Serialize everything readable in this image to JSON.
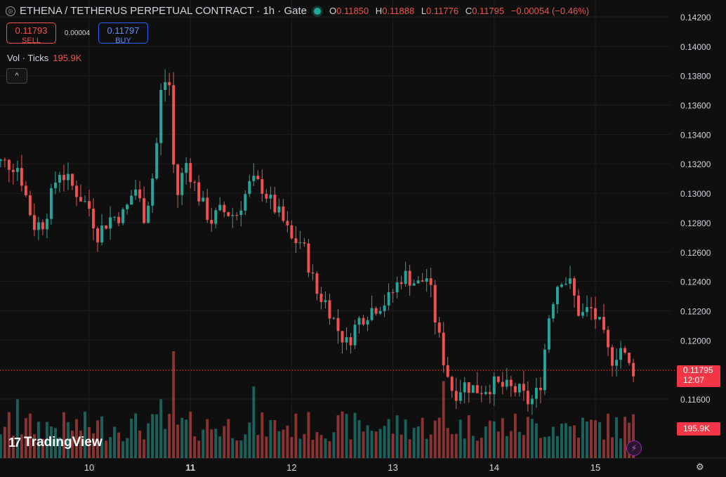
{
  "header": {
    "symbol_icon": "currency-icon",
    "title": "ETHENA / TETHERUS PERPETUAL CONTRACT · 1h · Gate",
    "status_color": "#26a69a",
    "ohlc": [
      {
        "label": "O",
        "value": "0.11850"
      },
      {
        "label": "H",
        "value": "0.11888"
      },
      {
        "label": "L",
        "value": "0.11776"
      },
      {
        "label": "C",
        "value": "0.11795"
      }
    ],
    "change": "−0.00054 (−0.46%)"
  },
  "trade": {
    "sell_price": "0.11793",
    "sell_label": "SELL",
    "spread": "0.00004",
    "buy_price": "0.11797",
    "buy_label": "BUY"
  },
  "volume_legend": {
    "label": "Vol · Ticks",
    "value": "195.9K"
  },
  "collapse_icon": "chevron-up-icon",
  "logo_text": "TradingView",
  "current_price_badge": {
    "price": "0.11795",
    "countdown": "12:07"
  },
  "volume_badge": "195.9K",
  "colors": {
    "up": "#26a69a",
    "down": "#ef5350",
    "background": "#0f0f0f",
    "grid": "#1f1f1f"
  },
  "chart_data": {
    "type": "candlestick",
    "title": "ETHENA / TETHERUS PERPETUAL CONTRACT · 1h · Gate",
    "x_ticks": [
      "10",
      "11",
      "12",
      "13",
      "14",
      "15"
    ],
    "y_ticks": [
      "0.14200",
      "0.14000",
      "0.13800",
      "0.13600",
      "0.13400",
      "0.13200",
      "0.13000",
      "0.12800",
      "0.12600",
      "0.12400",
      "0.12200",
      "0.12000",
      "0.11600"
    ],
    "ylim": [
      0.1152,
      0.1424
    ],
    "current_price": 0.11795,
    "interval": "1h",
    "close_anchors": [
      [
        9.15,
        0.1321
      ],
      [
        9.3,
        0.1318
      ],
      [
        9.45,
        0.1278
      ],
      [
        9.55,
        0.128
      ],
      [
        9.7,
        0.1316
      ],
      [
        9.85,
        0.1303
      ],
      [
        10.0,
        0.129
      ],
      [
        10.08,
        0.1272
      ],
      [
        10.2,
        0.1283
      ],
      [
        10.35,
        0.1286
      ],
      [
        10.45,
        0.1305
      ],
      [
        10.55,
        0.1283
      ],
      [
        10.65,
        0.132
      ],
      [
        10.72,
        0.1378
      ],
      [
        10.8,
        0.1373
      ],
      [
        10.85,
        0.1292
      ],
      [
        10.95,
        0.1322
      ],
      [
        11.1,
        0.1295
      ],
      [
        11.2,
        0.1281
      ],
      [
        11.3,
        0.1288
      ],
      [
        11.45,
        0.1285
      ],
      [
        11.6,
        0.1308
      ],
      [
        11.7,
        0.1305
      ],
      [
        11.8,
        0.1293
      ],
      [
        11.9,
        0.1283
      ],
      [
        12.0,
        0.1268
      ],
      [
        12.1,
        0.1267
      ],
      [
        12.25,
        0.1232
      ],
      [
        12.35,
        0.1225
      ],
      [
        12.45,
        0.1208
      ],
      [
        12.55,
        0.1197
      ],
      [
        12.65,
        0.1213
      ],
      [
        12.8,
        0.1222
      ],
      [
        12.95,
        0.1227
      ],
      [
        13.1,
        0.1245
      ],
      [
        13.25,
        0.1238
      ],
      [
        13.35,
        0.1244
      ],
      [
        13.4,
        0.122
      ],
      [
        13.5,
        0.1187
      ],
      [
        13.6,
        0.1163
      ],
      [
        13.7,
        0.117
      ],
      [
        13.85,
        0.1166
      ],
      [
        14.0,
        0.117
      ],
      [
        14.1,
        0.1168
      ],
      [
        14.25,
        0.1165
      ],
      [
        14.35,
        0.1157
      ],
      [
        14.45,
        0.1167
      ],
      [
        14.55,
        0.1221
      ],
      [
        14.65,
        0.1244
      ],
      [
        14.75,
        0.1238
      ],
      [
        14.85,
        0.1216
      ],
      [
        14.95,
        0.1222
      ],
      [
        15.05,
        0.1209
      ],
      [
        15.15,
        0.1186
      ],
      [
        15.25,
        0.1195
      ],
      [
        15.35,
        0.118
      ]
    ],
    "volume_ticks_last": "195.9K",
    "volume_spikes": [
      [
        10.85,
        1.0
      ],
      [
        11.62,
        0.67
      ],
      [
        13.48,
        0.72
      ],
      [
        9.3,
        0.55
      ],
      [
        10.72,
        0.55
      ]
    ]
  }
}
